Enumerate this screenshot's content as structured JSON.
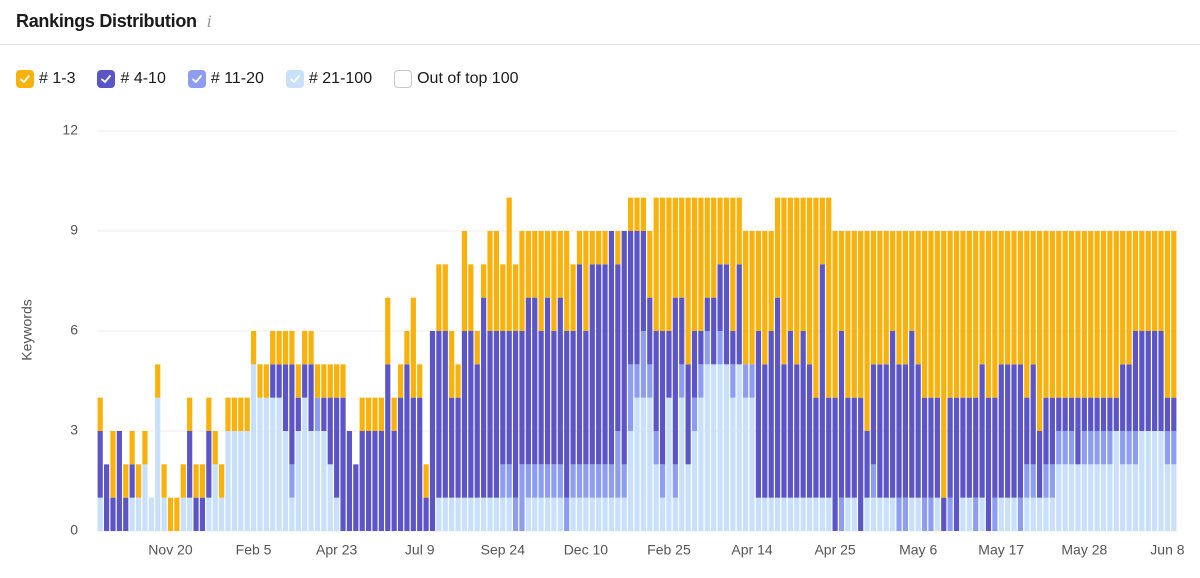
{
  "chart_data": {
    "type": "stacked_bar",
    "title": "Rankings Distribution",
    "info_icon": "i",
    "y_label": "Keywords",
    "ylim": [
      0,
      12
    ],
    "yticks": [
      0,
      3,
      6,
      9,
      12
    ],
    "grid": true,
    "categories": [
      null,
      null,
      null,
      null,
      null,
      null,
      null,
      null,
      null,
      null,
      null,
      "Nov 20",
      null,
      null,
      null,
      null,
      null,
      null,
      null,
      null,
      null,
      null,
      null,
      null,
      "Feb 5",
      null,
      null,
      null,
      null,
      null,
      null,
      null,
      null,
      null,
      null,
      null,
      null,
      "Apr 23",
      null,
      null,
      null,
      null,
      null,
      null,
      null,
      null,
      null,
      null,
      null,
      null,
      "Jul 9",
      null,
      null,
      null,
      null,
      null,
      null,
      null,
      null,
      null,
      null,
      null,
      null,
      "Sep 24",
      null,
      null,
      null,
      null,
      null,
      null,
      null,
      null,
      null,
      null,
      null,
      null,
      "Dec 10",
      null,
      null,
      null,
      null,
      null,
      null,
      null,
      null,
      null,
      null,
      null,
      null,
      "Feb 25",
      null,
      null,
      null,
      null,
      null,
      null,
      null,
      null,
      null,
      null,
      null,
      null,
      "Apr 14",
      null,
      null,
      null,
      null,
      null,
      null,
      null,
      null,
      null,
      null,
      null,
      null,
      "Apr 25",
      null,
      null,
      null,
      null,
      null,
      null,
      null,
      null,
      null,
      null,
      null,
      null,
      "May 6",
      null,
      null,
      null,
      null,
      null,
      null,
      null,
      null,
      null,
      null,
      null,
      null,
      "May 17",
      null,
      null,
      null,
      null,
      null,
      null,
      null,
      null,
      null,
      null,
      null,
      null,
      "May 28",
      null,
      null,
      null,
      null,
      null,
      null,
      null,
      null,
      null,
      null,
      null,
      null,
      "Jun 8",
      null
    ],
    "series": [
      {
        "name": "# 1-3",
        "color": "#f9b10b",
        "checked": true,
        "values": [
          1,
          0,
          2,
          0,
          1,
          1,
          1,
          1,
          0,
          1,
          1,
          1,
          1,
          1,
          1,
          1,
          1,
          1,
          1,
          1,
          1,
          1,
          1,
          1,
          1,
          1,
          1,
          1,
          1,
          1,
          1,
          1,
          1,
          1,
          1,
          1,
          1,
          1,
          1,
          0,
          0,
          1,
          1,
          1,
          1,
          2,
          1,
          1,
          1,
          3,
          1,
          1,
          0,
          2,
          2,
          2,
          1,
          3,
          2,
          1,
          1,
          3,
          3,
          2,
          4,
          2,
          3,
          2,
          2,
          3,
          2,
          3,
          2,
          3,
          2,
          1,
          3,
          1,
          1,
          1,
          0,
          1,
          0,
          1,
          1,
          1,
          2,
          4,
          4,
          4,
          3,
          3,
          5,
          4,
          4,
          3,
          3,
          2,
          2,
          4,
          2,
          4,
          4,
          3,
          4,
          3,
          3,
          5,
          4,
          5,
          4,
          5,
          6,
          2,
          6,
          5,
          3,
          5,
          5,
          5,
          6,
          4,
          4,
          4,
          3,
          4,
          4,
          3,
          4,
          5,
          5,
          5,
          8,
          5,
          5,
          5,
          5,
          5,
          4,
          5,
          5,
          4,
          4,
          4,
          4,
          5,
          4,
          6,
          5,
          5,
          5,
          5,
          5,
          5,
          5,
          5,
          5,
          5,
          5,
          5,
          4,
          4,
          3,
          3,
          3,
          3,
          3,
          5,
          5
        ]
      },
      {
        "name": "# 4-10",
        "color": "#5b55c8",
        "checked": true,
        "values": [
          2,
          2,
          1,
          3,
          1,
          1,
          0,
          0,
          0,
          0,
          0,
          0,
          0,
          0,
          2,
          1,
          1,
          2,
          0,
          0,
          0,
          0,
          0,
          0,
          0,
          0,
          0,
          1,
          1,
          2,
          3,
          1,
          1,
          2,
          0,
          1,
          2,
          3,
          4,
          3,
          2,
          3,
          3,
          3,
          3,
          5,
          3,
          4,
          5,
          4,
          4,
          1,
          6,
          5,
          5,
          3,
          3,
          5,
          5,
          4,
          6,
          5,
          5,
          4,
          4,
          5,
          4,
          5,
          5,
          4,
          5,
          4,
          5,
          5,
          4,
          6,
          4,
          6,
          6,
          6,
          7,
          5,
          7,
          4,
          4,
          3,
          2,
          3,
          4,
          2,
          5,
          2,
          3,
          2,
          1,
          1,
          2,
          2,
          3,
          1,
          3,
          0,
          0,
          5,
          4,
          5,
          6,
          4,
          5,
          4,
          5,
          4,
          3,
          7,
          3,
          4,
          5,
          3,
          3,
          4,
          2,
          3,
          4,
          4,
          5,
          4,
          4,
          5,
          4,
          3,
          3,
          3,
          1,
          3,
          4,
          3,
          3,
          3,
          4,
          4,
          3,
          4,
          4,
          4,
          4,
          2,
          3,
          2,
          2,
          2,
          1,
          1,
          1,
          2,
          1,
          1,
          1,
          1,
          1,
          1,
          2,
          2,
          3,
          3,
          3,
          3,
          3,
          1,
          1
        ]
      },
      {
        "name": "# 11-20",
        "color": "#8d9ef2",
        "checked": true,
        "values": [
          0,
          0,
          0,
          0,
          0,
          0,
          0,
          0,
          0,
          0,
          0,
          0,
          0,
          0,
          0,
          0,
          0,
          0,
          0,
          0,
          0,
          0,
          0,
          0,
          0,
          0,
          0,
          0,
          0,
          0,
          1,
          0,
          0,
          0,
          1,
          0,
          0,
          0,
          0,
          0,
          0,
          0,
          0,
          0,
          0,
          0,
          0,
          0,
          0,
          0,
          0,
          0,
          0,
          0,
          0,
          0,
          0,
          0,
          0,
          0,
          0,
          0,
          0,
          1,
          1,
          1,
          2,
          1,
          1,
          1,
          1,
          1,
          1,
          1,
          1,
          1,
          1,
          1,
          1,
          1,
          1,
          2,
          1,
          2,
          1,
          2,
          1,
          1,
          1,
          0,
          1,
          1,
          0,
          1,
          1,
          1,
          0,
          1,
          0,
          1,
          0,
          1,
          1,
          0,
          0,
          0,
          0,
          0,
          0,
          0,
          0,
          0,
          0,
          0,
          0,
          0,
          1,
          0,
          0,
          0,
          0,
          1,
          0,
          0,
          0,
          1,
          1,
          0,
          0,
          1,
          1,
          0,
          0,
          1,
          0,
          0,
          0,
          1,
          0,
          0,
          1,
          0,
          0,
          0,
          1,
          1,
          1,
          0,
          1,
          1,
          1,
          1,
          1,
          0,
          1,
          1,
          1,
          1,
          1,
          0,
          1,
          1,
          1,
          0,
          0,
          0,
          0,
          1,
          1
        ]
      },
      {
        "name": "# 21-100",
        "color": "#c8e0fa",
        "checked": true,
        "values": [
          1,
          0,
          0,
          0,
          0,
          1,
          1,
          2,
          1,
          4,
          1,
          0,
          0,
          1,
          1,
          0,
          0,
          1,
          2,
          1,
          3,
          3,
          3,
          3,
          5,
          4,
          4,
          4,
          4,
          3,
          1,
          3,
          4,
          3,
          3,
          3,
          2,
          1,
          0,
          0,
          0,
          0,
          0,
          0,
          0,
          0,
          0,
          0,
          0,
          0,
          0,
          0,
          0,
          1,
          1,
          1,
          1,
          1,
          1,
          1,
          1,
          1,
          1,
          1,
          1,
          0,
          0,
          1,
          1,
          1,
          1,
          1,
          1,
          0,
          1,
          1,
          1,
          1,
          1,
          1,
          1,
          1,
          1,
          3,
          4,
          4,
          4,
          2,
          1,
          4,
          1,
          4,
          2,
          3,
          4,
          5,
          5,
          5,
          5,
          4,
          5,
          4,
          4,
          1,
          1,
          1,
          1,
          1,
          1,
          1,
          1,
          1,
          1,
          1,
          1,
          0,
          0,
          1,
          1,
          0,
          1,
          1,
          1,
          1,
          1,
          0,
          0,
          1,
          1,
          0,
          0,
          1,
          0,
          0,
          0,
          1,
          1,
          0,
          1,
          0,
          0,
          1,
          1,
          1,
          0,
          1,
          1,
          1,
          1,
          1,
          2,
          2,
          2,
          2,
          2,
          2,
          2,
          2,
          2,
          3,
          2,
          2,
          2,
          3,
          3,
          3,
          3,
          2,
          2
        ]
      },
      {
        "name": "Out of top 100",
        "color": "#ffffff",
        "checked": false
      }
    ]
  }
}
